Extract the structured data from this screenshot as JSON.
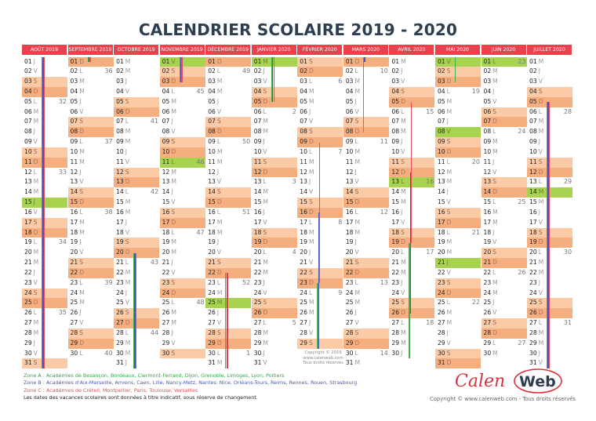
{
  "title": "CALENDRIER SCOLAIRE  2019 - 2020",
  "colors": {
    "header": "#e8434d",
    "saturday": "#fbcaa7",
    "sunday": "#f5ae7f",
    "holiday": "#a8d351",
    "zoneA": "#3fae4f",
    "zoneB": "#4b55b5",
    "zoneC": "#e84c5c"
  },
  "months": [
    {
      "label": "AOÛT 2019",
      "days": 31,
      "start": 4,
      "holidays": [
        15
      ],
      "weeks": {
        "5": "32",
        "12": "33",
        "19": "34",
        "26": "35"
      },
      "bars": {
        "A": [
          1,
          31
        ],
        "B": [
          1,
          31
        ],
        "C": [
          1,
          31
        ]
      }
    },
    {
      "label": "SEPTEMBRE 2019",
      "days": 30,
      "start": 0,
      "holidays": [],
      "weeks": {
        "2": "36",
        "9": "37",
        "16": "38",
        "23": "39",
        "30": "40"
      },
      "bars": {
        "A": [
          1,
          1
        ],
        "B": [
          1,
          1
        ],
        "C": [
          1,
          1
        ]
      }
    },
    {
      "label": "OCTOBRE 2019",
      "days": 31,
      "start": 2,
      "holidays": [],
      "weeks": {
        "7": "41",
        "14": "42",
        "21": "43",
        "28": "44"
      },
      "bars": {
        "A": [
          20,
          31
        ],
        "B": [
          20,
          31
        ],
        "C": [
          20,
          31
        ]
      }
    },
    {
      "label": "NOVEMBRE 2019",
      "days": 30,
      "start": 5,
      "holidays": [
        1,
        11
      ],
      "weeks": {
        "4": "45",
        "11": "46",
        "18": "47",
        "25": "48"
      },
      "bars": {
        "A": [
          1,
          3
        ],
        "B": [
          1,
          3
        ],
        "C": [
          1,
          3
        ]
      }
    },
    {
      "label": "DÉCEMBRE 2019",
      "days": 31,
      "start": 0,
      "holidays": [
        25
      ],
      "weeks": {
        "2": "49",
        "9": "50",
        "16": "51",
        "23": "52",
        "30": "1"
      },
      "bars": {
        "A": [
          22,
          31
        ],
        "B": [
          22,
          31
        ],
        "C": [
          22,
          31
        ]
      }
    },
    {
      "label": "JANVIER 2020",
      "days": 31,
      "start": 3,
      "holidays": [
        1
      ],
      "weeks": {
        "6": "2",
        "13": "3",
        "20": "4",
        "27": "5"
      },
      "bars": {
        "A": [
          1,
          5
        ],
        "B": [
          1,
          5
        ],
        "C": [
          1,
          5
        ]
      }
    },
    {
      "label": "FÉVRIER 2020",
      "days": 29,
      "start": 6,
      "holidays": [],
      "weeks": {
        "3": "6",
        "10": "7",
        "17": "8",
        "24": "9"
      },
      "bars": {
        "C": [
          9,
          23
        ],
        "B": [
          16,
          29
        ],
        "A": [
          23,
          29
        ]
      }
    },
    {
      "label": "MARS 2020",
      "days": 31,
      "start": 0,
      "holidays": [],
      "weeks": {
        "2": "10",
        "9": "11",
        "16": "12",
        "23": "13",
        "30": "14"
      },
      "bars": {
        "B": [
          1,
          1
        ],
        "A": [
          1,
          8
        ]
      }
    },
    {
      "label": "AVRIL 2020",
      "days": 30,
      "start": 3,
      "holidays": [
        13
      ],
      "weeks": {
        "6": "15",
        "13": "16",
        "20": "17",
        "27": "18"
      },
      "bars": {
        "C": [
          5,
          19
        ],
        "B": [
          12,
          26
        ],
        "A": [
          19,
          30
        ]
      }
    },
    {
      "label": "MAI 2020",
      "days": 31,
      "start": 5,
      "holidays": [
        1,
        8,
        21
      ],
      "weeks": {
        "4": "19",
        "11": "20",
        "18": "21",
        "25": "22"
      },
      "bars": {
        "A": [
          1,
          3
        ]
      }
    },
    {
      "label": "JUIN 2020",
      "days": 30,
      "start": 1,
      "holidays": [
        1
      ],
      "weeks": {
        "1": "23",
        "8": "24",
        "15": "25",
        "22": "26",
        "29": "27"
      },
      "bars": {}
    },
    {
      "label": "JUILLET 2020",
      "days": 31,
      "start": 3,
      "holidays": [
        14
      ],
      "weeks": {
        "6": "28",
        "13": "29",
        "20": "30",
        "27": "31"
      },
      "bars": {
        "A": [
          5,
          31
        ],
        "B": [
          5,
          31
        ],
        "C": [
          5,
          31
        ]
      }
    }
  ],
  "day_letters": [
    "D",
    "L",
    "M",
    "M",
    "J",
    "V",
    "S"
  ],
  "zones": {
    "a": "Zone A : Académies de Besançon,  Bordeaux,  Clermont-Ferrand,  Dijon,  Grenoble,  Limoges,  Lyon,  Poitiers",
    "b": "Zone B : Académies d'Aix-Marseille,  Amiens,  Caen,  Lille,  Nancy-Metz,  Nantes,  Nice,  Orléans-Tours, Reims,  Rennes,  Rouen,  Strasbourg",
    "c": "Zone C : Académies de Créteil,  Montpellier,  Paris,  Toulouse,  Versailles",
    "note": "Les dates des vacances scolaires sont données à titre indicatif, sous réserve de changement."
  },
  "mini_copyright": [
    "Copyright  © 2019",
    "www.calenweb.com",
    "Tous droits réservés"
  ],
  "logo": {
    "calen": "Calen",
    "web": "Web"
  },
  "footer": "Copyright  ©  www.calenweb.com - Tous droits réservés"
}
